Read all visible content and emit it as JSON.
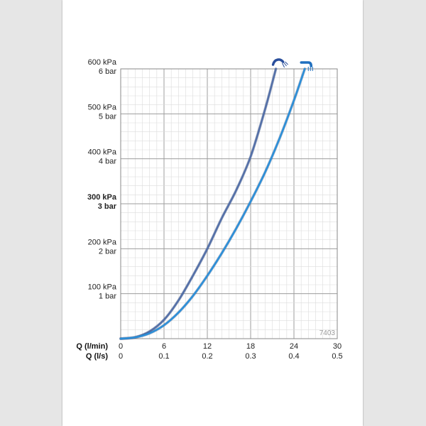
{
  "chart_data": {
    "type": "line",
    "chart_code": "7403",
    "xlabel_primary": "Q (l/min)",
    "xlabel_secondary": "Q (l/s)",
    "xlim": [
      0,
      30
    ],
    "ylim": [
      0,
      600
    ],
    "x_ticks_primary": [
      "0",
      "6",
      "12",
      "18",
      "24",
      "30"
    ],
    "x_ticks_secondary": [
      "0",
      "0.1",
      "0.2",
      "0.3",
      "0.4",
      "0.5"
    ],
    "y_ticks": [
      {
        "kpa": "100 kPa",
        "bar": "1 bar",
        "value": 100,
        "bold": false
      },
      {
        "kpa": "200 kPa",
        "bar": "2 bar",
        "value": 200,
        "bold": false
      },
      {
        "kpa": "300 kPa",
        "bar": "3 bar",
        "value": 300,
        "bold": true
      },
      {
        "kpa": "400 kPa",
        "bar": "4 bar",
        "value": 400,
        "bold": false
      },
      {
        "kpa": "500 kPa",
        "bar": "5 bar",
        "value": 500,
        "bold": false
      },
      {
        "kpa": "600 kPa",
        "bar": "6 bar",
        "value": 600,
        "bold": false
      }
    ],
    "grid": true,
    "series": [
      {
        "icon": "hand-shower-icon",
        "color": "#5470a8",
        "x": [
          0,
          2,
          4,
          6,
          8,
          10,
          12,
          14,
          16,
          18,
          20,
          21.5
        ],
        "y": [
          0,
          3,
          16,
          42,
          85,
          140,
          200,
          268,
          330,
          405,
          510,
          600
        ]
      },
      {
        "icon": "spout-icon",
        "color": "#2c8fd8",
        "x": [
          0,
          2,
          4,
          6,
          8,
          10,
          12,
          14,
          16,
          18,
          20,
          22,
          24,
          25.5
        ],
        "y": [
          0,
          3,
          12,
          30,
          58,
          95,
          140,
          190,
          245,
          305,
          370,
          445,
          530,
          600
        ]
      }
    ]
  }
}
